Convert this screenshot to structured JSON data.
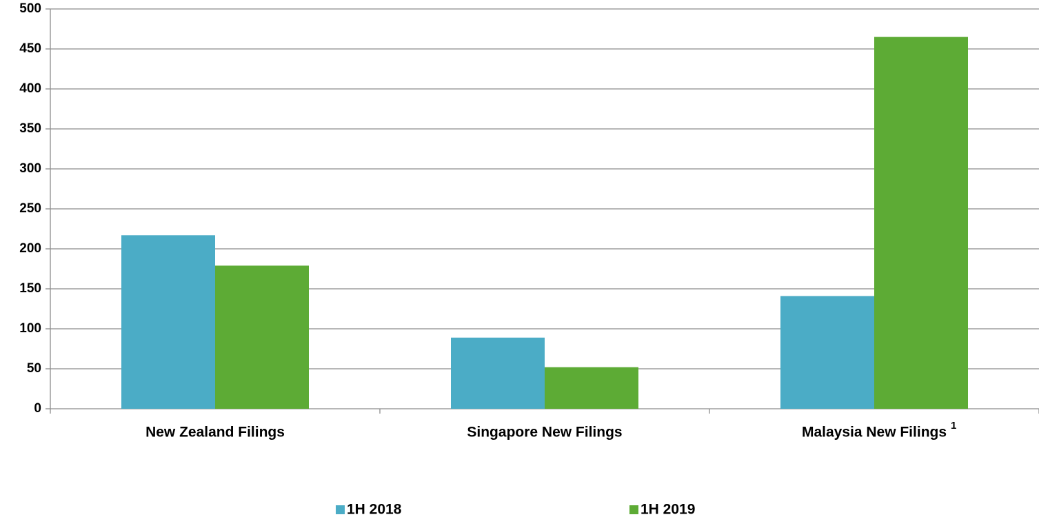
{
  "chart_data": {
    "type": "bar",
    "categories": [
      "New Zealand Filings",
      "Singapore New Filings",
      "Malaysia New Filings"
    ],
    "category_notes": [
      null,
      null,
      "1"
    ],
    "series": [
      {
        "name": "1H 2018",
        "color": "#4bacc6",
        "values": [
          217,
          89,
          141
        ]
      },
      {
        "name": "1H 2019",
        "color": "#5dab35",
        "values": [
          179,
          52,
          465
        ]
      }
    ],
    "ylim": [
      0,
      500
    ],
    "yticks": [
      0,
      50,
      100,
      150,
      200,
      250,
      300,
      350,
      400,
      450,
      500
    ],
    "grid": true,
    "legend": "bottom"
  }
}
